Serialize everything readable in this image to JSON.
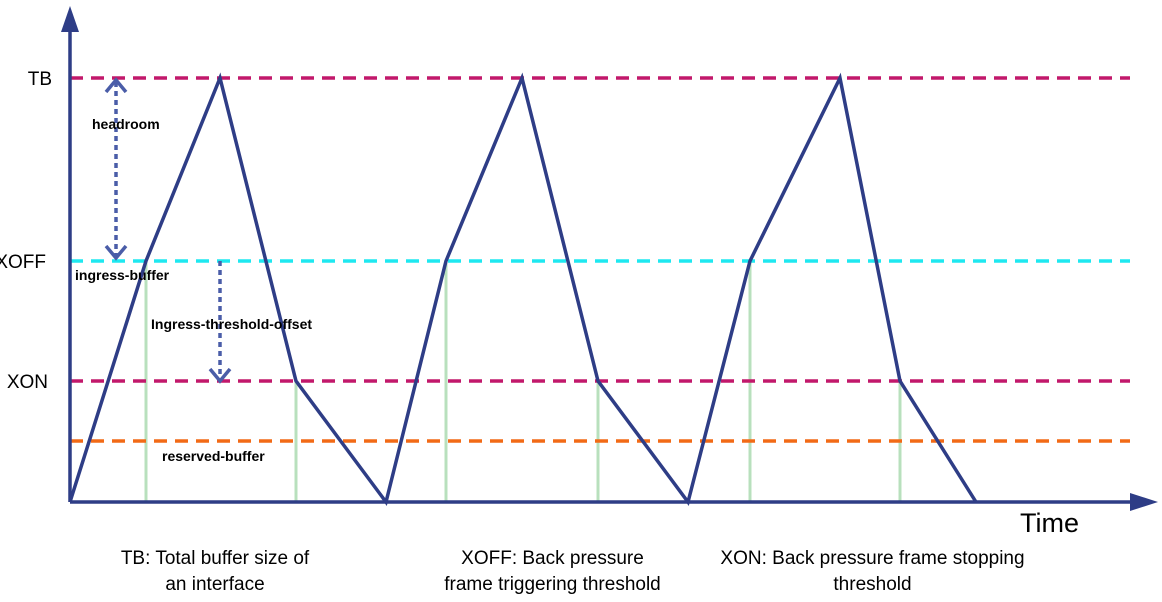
{
  "levels": {
    "tb": "TB",
    "xoff": "XOFF",
    "xon": "XON"
  },
  "regions": {
    "headroom": "headroom",
    "ingress_buffer": "ingress-buffer",
    "ingress_threshold_offset": "Ingress-threshold-offset",
    "reserved_buffer": "reserved-buffer"
  },
  "axis": {
    "x_label": "Time"
  },
  "captions": {
    "tb": "TB: Total buffer size of\nan interface",
    "xoff": "XOFF: Back pressure\nframe triggering threshold",
    "xon": "XON: Back pressure frame stopping\nthreshold"
  },
  "colors": {
    "axis": "#2e3d86",
    "waveform": "#2e3d86",
    "tb_line": "#c2186b",
    "xoff_line": "#1ee8f0",
    "xon_line": "#c2186b",
    "reserved_line": "#f26a16",
    "marker_line": "#b8e0bd",
    "dimension_arrow": "#4a5da8"
  }
}
